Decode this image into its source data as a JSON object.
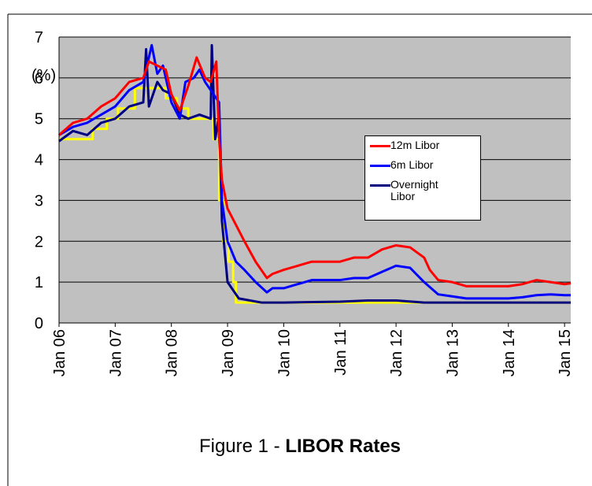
{
  "chart_data": {
    "type": "line",
    "y_label": "(%)",
    "caption": "Figure 1 - ",
    "caption_bold": "LIBOR Rates",
    "xlim": [
      2006,
      2015.11
    ],
    "xticks": [
      {
        "value": 2006,
        "label": "Jan 06"
      },
      {
        "value": 2007,
        "label": "Jan 07"
      },
      {
        "value": 2008,
        "label": "Jan 08"
      },
      {
        "value": 2009,
        "label": "Jan 09"
      },
      {
        "value": 2010,
        "label": "Jan 10"
      },
      {
        "value": 2011,
        "label": "Jan 11"
      },
      {
        "value": 2012,
        "label": "Jan 12"
      },
      {
        "value": 2013,
        "label": "Jan 13"
      },
      {
        "value": 2014,
        "label": "Jan 14"
      },
      {
        "value": 2015,
        "label": "Jan 15"
      }
    ],
    "ylim": [
      0,
      7
    ],
    "yticks": [
      0,
      1,
      2,
      3,
      4,
      5,
      6,
      7
    ],
    "grid": true,
    "background": "#c0c0c0",
    "series": [
      {
        "color": "#ffff00",
        "x": [
          2006,
          2006.6,
          2006.6,
          2006.85,
          2006.85,
          2007.05,
          2007.05,
          2007.35,
          2007.35,
          2007.9,
          2007.9,
          2008.1,
          2008.1,
          2008.3,
          2008.3,
          2008.75,
          2008.75,
          2008.85,
          2008.85,
          2008.92,
          2008.92,
          2009.02,
          2009.02,
          2009.1,
          2009.1,
          2009.15,
          2009.15,
          2015.11
        ],
        "values": [
          4.5,
          4.5,
          4.75,
          4.75,
          5.0,
          5.0,
          5.25,
          5.25,
          5.75,
          5.75,
          5.5,
          5.5,
          5.25,
          5.25,
          5.0,
          5.0,
          4.5,
          4.5,
          3.0,
          3.0,
          2.0,
          2.0,
          1.5,
          1.5,
          1.0,
          1.0,
          0.5,
          0.5
        ]
      },
      {
        "name": "Overnight Libor",
        "color": "#000080",
        "x": [
          2006,
          2006.25,
          2006.5,
          2006.75,
          2007,
          2007.25,
          2007.5,
          2007.55,
          2007.6,
          2007.75,
          2007.85,
          2008,
          2008.15,
          2008.3,
          2008.5,
          2008.7,
          2008.72,
          2008.78,
          2008.85,
          2008.9,
          2009,
          2009.1,
          2009.2,
          2009.4,
          2009.6,
          2010,
          2011,
          2011.5,
          2012,
          2012.5,
          2013,
          2014,
          2015,
          2015.11
        ],
        "values": [
          4.45,
          4.7,
          4.6,
          4.9,
          5.0,
          5.3,
          5.4,
          6.7,
          5.3,
          5.9,
          5.7,
          5.6,
          5.1,
          5.0,
          5.1,
          5.0,
          6.8,
          4.5,
          5.1,
          2.5,
          1.0,
          0.8,
          0.6,
          0.55,
          0.5,
          0.5,
          0.52,
          0.55,
          0.55,
          0.5,
          0.5,
          0.5,
          0.5,
          0.5
        ]
      },
      {
        "name": "6m Libor",
        "color": "#0000ff",
        "x": [
          2006,
          2006.25,
          2006.5,
          2006.75,
          2007,
          2007.25,
          2007.5,
          2007.65,
          2007.75,
          2007.85,
          2008,
          2008.15,
          2008.25,
          2008.4,
          2008.5,
          2008.6,
          2008.75,
          2008.85,
          2008.9,
          2009,
          2009.15,
          2009.3,
          2009.5,
          2009.7,
          2009.8,
          2010,
          2010.25,
          2010.5,
          2010.75,
          2011,
          2011.25,
          2011.5,
          2011.75,
          2012,
          2012.25,
          2012.5,
          2012.75,
          2013,
          2013.25,
          2013.5,
          2013.75,
          2014,
          2014.25,
          2014.5,
          2014.75,
          2015,
          2015.11
        ],
        "values": [
          4.6,
          4.8,
          4.9,
          5.1,
          5.3,
          5.7,
          5.9,
          6.8,
          6.1,
          6.3,
          5.4,
          5.0,
          5.9,
          6.0,
          6.2,
          5.9,
          5.6,
          5.4,
          3.0,
          2.0,
          1.5,
          1.3,
          1.0,
          0.75,
          0.85,
          0.85,
          0.95,
          1.05,
          1.05,
          1.05,
          1.1,
          1.1,
          1.25,
          1.4,
          1.35,
          1.0,
          0.7,
          0.65,
          0.6,
          0.6,
          0.6,
          0.6,
          0.63,
          0.68,
          0.7,
          0.68,
          0.68
        ]
      },
      {
        "name": "12m Libor",
        "color": "#ff0000",
        "x": [
          2006,
          2006.25,
          2006.5,
          2006.75,
          2007,
          2007.25,
          2007.5,
          2007.6,
          2007.75,
          2007.9,
          2008,
          2008.15,
          2008.3,
          2008.45,
          2008.6,
          2008.7,
          2008.8,
          2008.85,
          2008.9,
          2009,
          2009.15,
          2009.3,
          2009.5,
          2009.7,
          2009.8,
          2010,
          2010.25,
          2010.5,
          2010.75,
          2011,
          2011.25,
          2011.5,
          2011.75,
          2012,
          2012.25,
          2012.5,
          2012.6,
          2012.75,
          2013,
          2013.25,
          2013.5,
          2013.75,
          2014,
          2014.25,
          2014.5,
          2014.75,
          2015,
          2015.11
        ],
        "values": [
          4.6,
          4.9,
          5.0,
          5.3,
          5.5,
          5.9,
          6.0,
          6.4,
          6.3,
          6.2,
          5.6,
          5.2,
          5.8,
          6.5,
          6.0,
          5.9,
          6.4,
          4.5,
          3.5,
          2.8,
          2.4,
          2.0,
          1.5,
          1.1,
          1.2,
          1.3,
          1.4,
          1.5,
          1.5,
          1.5,
          1.6,
          1.6,
          1.8,
          1.9,
          1.85,
          1.6,
          1.3,
          1.05,
          1.0,
          0.9,
          0.9,
          0.9,
          0.9,
          0.95,
          1.05,
          1.0,
          0.95,
          0.97
        ]
      }
    ]
  }
}
